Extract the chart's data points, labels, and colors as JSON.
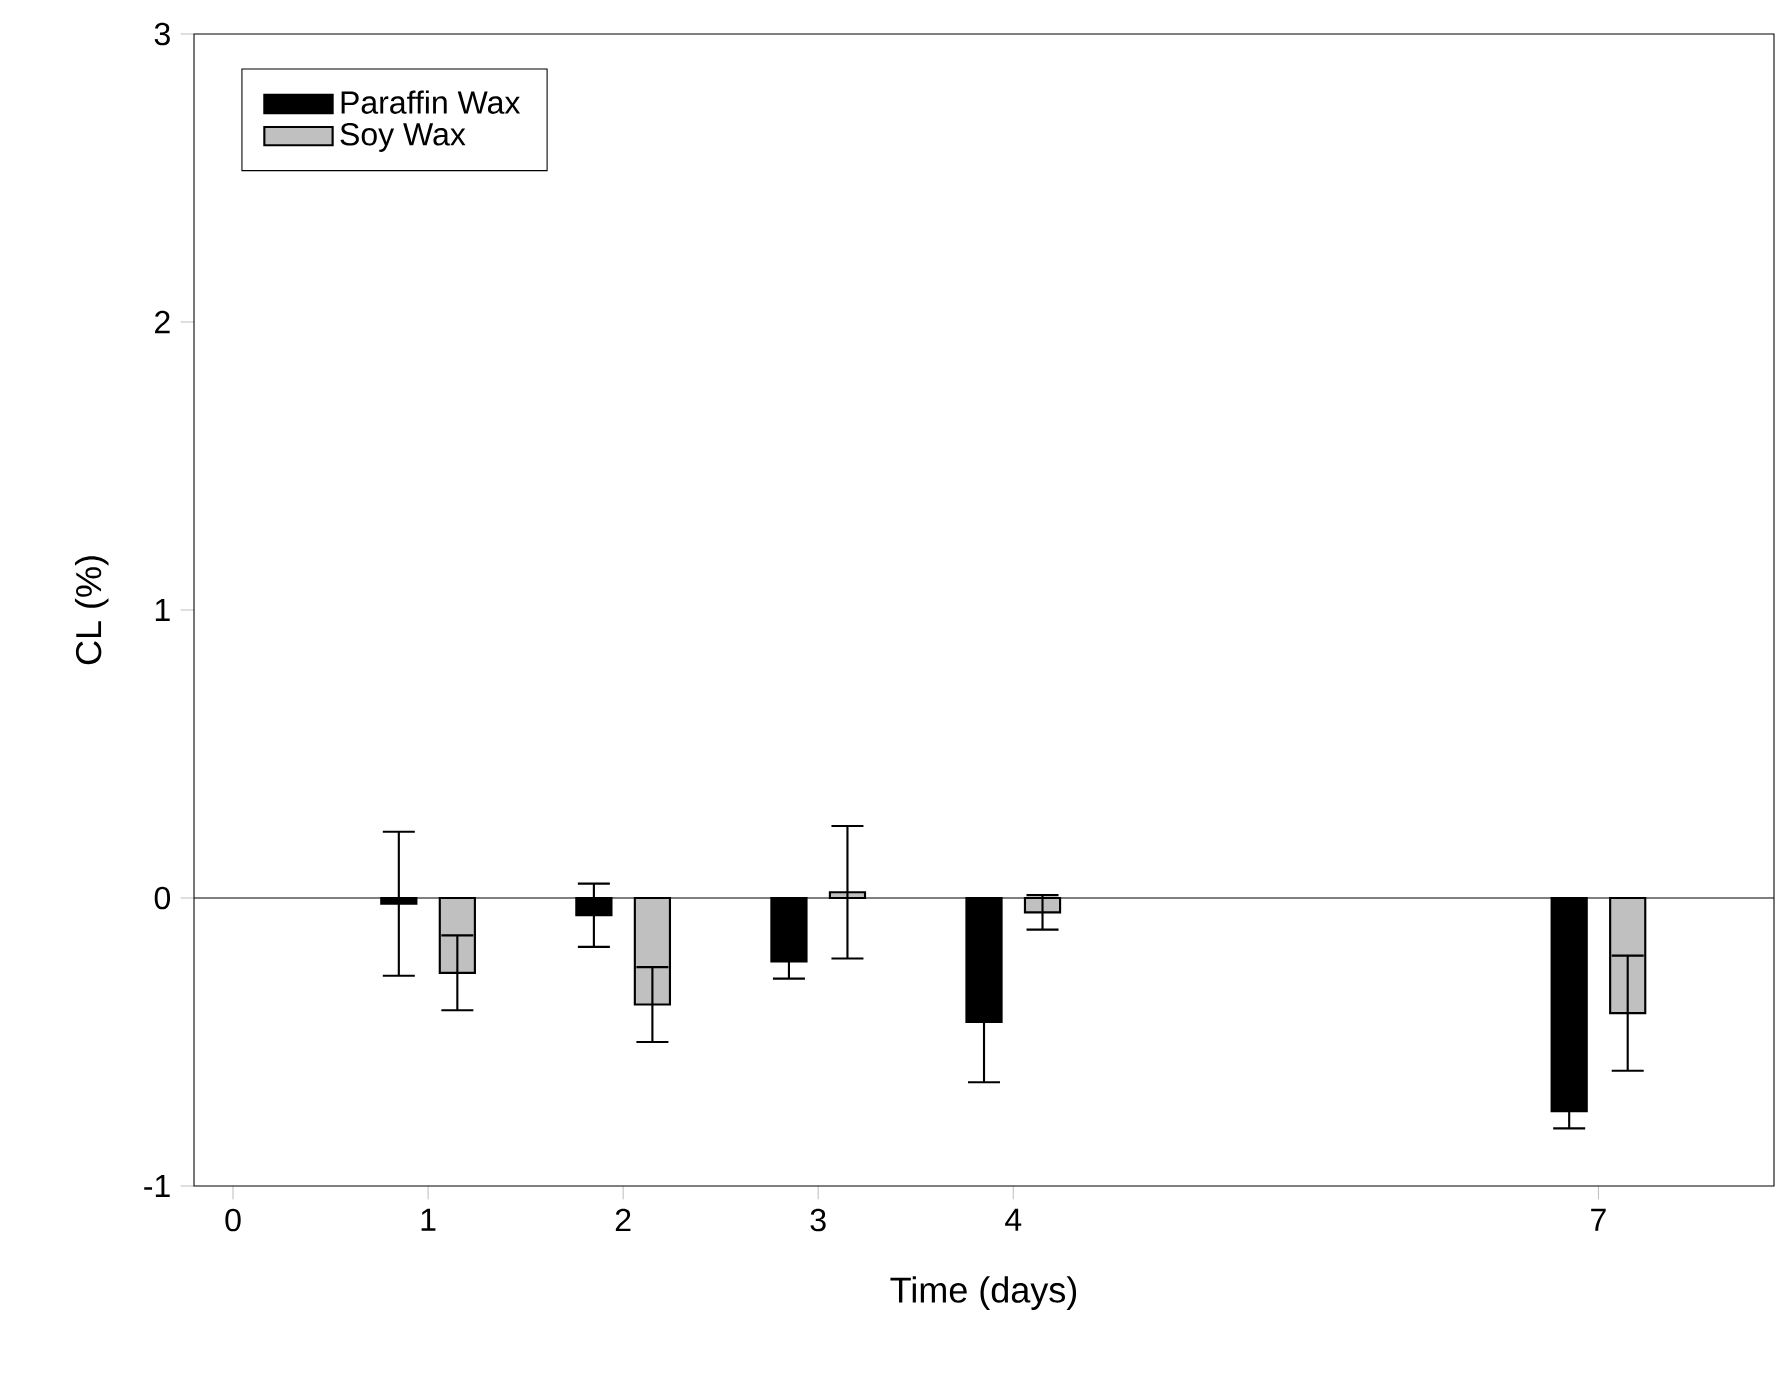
{
  "chart_data": {
    "type": "bar",
    "xlabel": "Time (days)",
    "ylabel": "CL (%)",
    "x": [
      1,
      2,
      3,
      4,
      7
    ],
    "series": [
      {
        "name": "Paraffin Wax",
        "color": "#000000",
        "values": [
          -0.02,
          -0.06,
          -0.22,
          -0.43,
          -0.74
        ],
        "errors": [
          0.25,
          0.11,
          0.06,
          0.21,
          0.06
        ]
      },
      {
        "name": "Soy Wax",
        "color": "#c0c0c0",
        "values": [
          -0.26,
          -0.37,
          0.02,
          -0.05,
          -0.4
        ],
        "errors": [
          0.13,
          0.13,
          0.23,
          0.06,
          0.2
        ]
      }
    ],
    "xlim": [
      -0.2,
      7.9
    ],
    "xticks": [
      0,
      1,
      2,
      3,
      4,
      7
    ],
    "ylim": [
      -1,
      3
    ],
    "yticks": [
      -1,
      0,
      1,
      2,
      3
    ],
    "ref_lines": [
      {
        "axis": "y",
        "value": 0
      }
    ],
    "legend": "top left",
    "grid": false
  }
}
